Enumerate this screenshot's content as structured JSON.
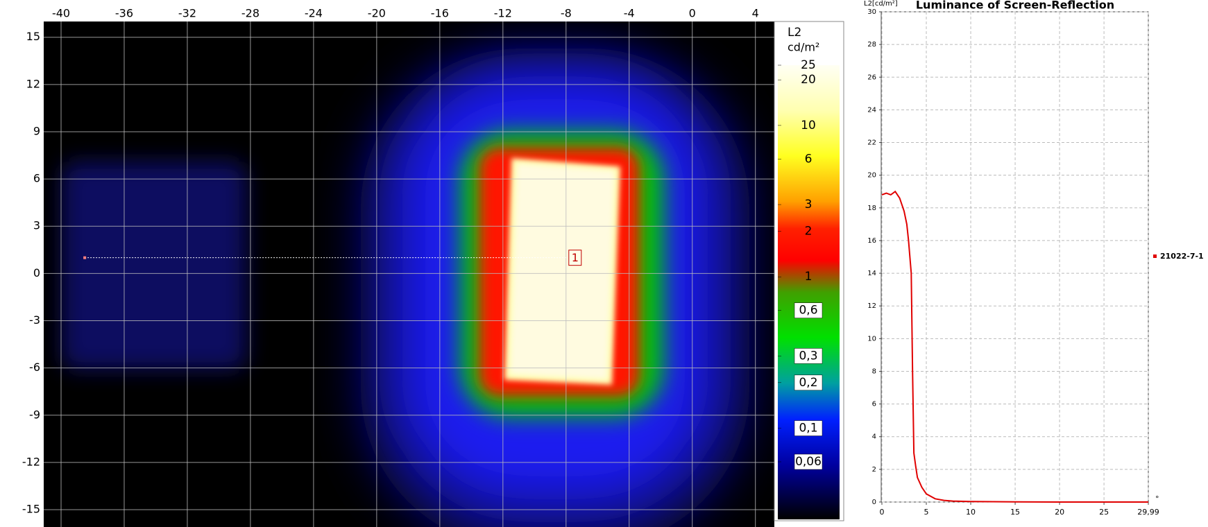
{
  "chart_data": [
    {
      "type": "heatmap",
      "xlim": [
        -41.1,
        5.2
      ],
      "ylim": [
        -16.1,
        16
      ],
      "xticks": [
        -40,
        -36,
        -32,
        -28,
        -24,
        -20,
        -16,
        -12,
        -8,
        -4,
        0,
        4
      ],
      "yticks": [
        15,
        12,
        9,
        6,
        3,
        0,
        -3,
        -6,
        -9,
        -12,
        -15
      ],
      "grid": true,
      "profile": {
        "label": "1",
        "x": [
          -38.5,
          -8
        ],
        "y": 1,
        "color": "#ffffff"
      },
      "colorbar": {
        "label": "L2",
        "unit": "cd/m²",
        "clim": [
          0.025,
          25
        ],
        "log": true,
        "ticks": [
          25,
          20,
          10,
          6,
          3,
          2,
          1,
          {
            "value": 0.6,
            "label": "0,6"
          },
          {
            "value": 0.3,
            "label": "0,3"
          },
          {
            "value": 0.2,
            "label": "0,2"
          },
          {
            "value": 0.1,
            "label": "0,1"
          },
          {
            "value": 0.06,
            "label": "0,06"
          }
        ]
      }
    },
    {
      "type": "line",
      "title": "Luminance of Screen-Reflection",
      "ylabel": "L2[cd/m²]",
      "xunit": "°",
      "xlim": [
        0,
        29.99
      ],
      "ylim": [
        0,
        30
      ],
      "xticks": [
        0,
        5,
        10,
        15,
        20,
        25,
        {
          "value": 29.99,
          "label": "29,99"
        }
      ],
      "yticks": [
        0,
        2,
        4,
        6,
        8,
        10,
        12,
        14,
        16,
        18,
        20,
        22,
        24,
        26,
        28,
        30
      ],
      "grid": true,
      "x": [
        0,
        0.5,
        1,
        1.5,
        2,
        2.5,
        2.8,
        3,
        3.3,
        3.45,
        3.6,
        3.8,
        4,
        4.5,
        5,
        6,
        7,
        8,
        10,
        15,
        20,
        25,
        29.99
      ],
      "series": [
        {
          "name": "21022-7-1",
          "color": "#e00000",
          "values": [
            18.8,
            18.9,
            18.8,
            19,
            18.6,
            17.8,
            17,
            16,
            14,
            8,
            3,
            2.2,
            1.5,
            0.9,
            0.5,
            0.2,
            0.1,
            0.06,
            0.03,
            0.01,
            0,
            0,
            0
          ]
        }
      ]
    }
  ]
}
